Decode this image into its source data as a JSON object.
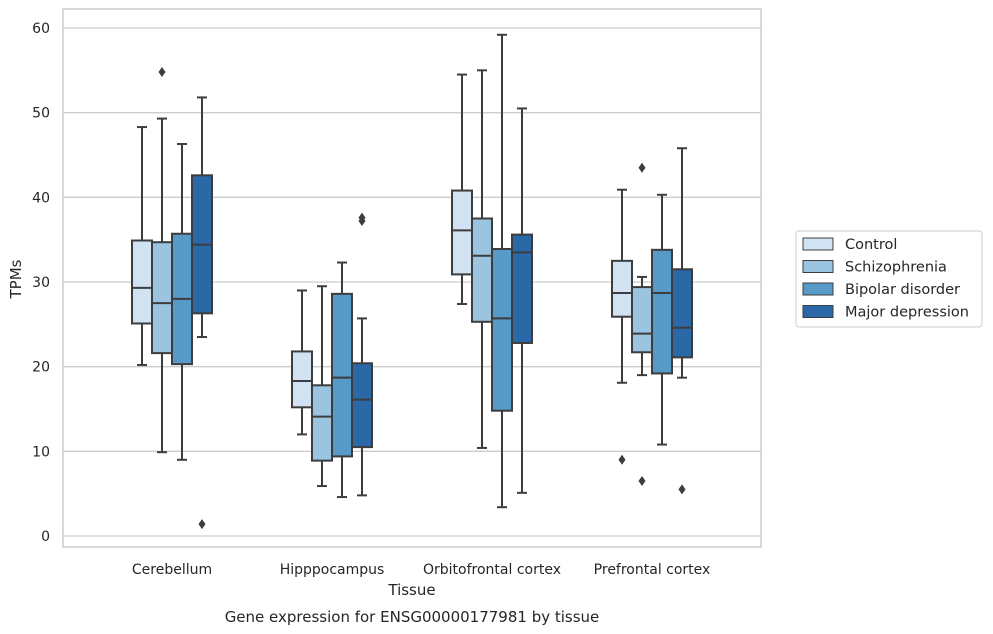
{
  "chart_data": {
    "type": "boxplot",
    "title": "",
    "caption": "Gene expression for ENSG00000177981 by tissue",
    "xlabel": "Tissue",
    "ylabel": "TPMs",
    "ylim": [
      -1.3,
      62.3
    ],
    "yticks": [
      0,
      10,
      20,
      30,
      40,
      50,
      60
    ],
    "grid": "horizontal",
    "legend_position": "right",
    "categories": [
      "Cerebellum",
      "Hipppocampus",
      "Orbitofrontal cortex",
      "Prefrontal cortex"
    ],
    "series": [
      {
        "name": "Control",
        "color": "#d1e2f2",
        "boxes": [
          {
            "whislo": 20.2,
            "q1": 25.1,
            "med": 29.3,
            "q3": 34.9,
            "whishi": 48.3,
            "fliers": []
          },
          {
            "whislo": 12.0,
            "q1": 15.2,
            "med": 18.3,
            "q3": 21.8,
            "whishi": 29.0,
            "fliers": []
          },
          {
            "whislo": 27.4,
            "q1": 30.9,
            "med": 36.1,
            "q3": 40.8,
            "whishi": 54.5,
            "fliers": []
          },
          {
            "whislo": 18.1,
            "q1": 25.9,
            "med": 28.7,
            "q3": 32.5,
            "whishi": 40.9,
            "fliers": [
              9.0
            ]
          }
        ]
      },
      {
        "name": "Schizophrenia",
        "color": "#9ac4df",
        "boxes": [
          {
            "whislo": 9.9,
            "q1": 21.6,
            "med": 27.5,
            "q3": 34.7,
            "whishi": 49.3,
            "fliers": [
              54.8
            ]
          },
          {
            "whislo": 5.9,
            "q1": 8.9,
            "med": 14.1,
            "q3": 17.8,
            "whishi": 29.5,
            "fliers": []
          },
          {
            "whislo": 10.4,
            "q1": 25.3,
            "med": 33.1,
            "q3": 37.5,
            "whishi": 55.0,
            "fliers": []
          },
          {
            "whislo": 19.0,
            "q1": 21.7,
            "med": 23.9,
            "q3": 29.4,
            "whishi": 30.6,
            "fliers": [
              43.5,
              6.5
            ]
          }
        ]
      },
      {
        "name": "Bipolar disorder",
        "color": "#5799c7",
        "boxes": [
          {
            "whislo": 9.0,
            "q1": 20.3,
            "med": 28.0,
            "q3": 35.7,
            "whishi": 46.3,
            "fliers": []
          },
          {
            "whislo": 4.6,
            "q1": 9.4,
            "med": 18.7,
            "q3": 28.6,
            "whishi": 32.3,
            "fliers": []
          },
          {
            "whislo": 3.4,
            "q1": 14.8,
            "med": 25.7,
            "q3": 33.9,
            "whishi": 59.2,
            "fliers": []
          },
          {
            "whislo": 10.8,
            "q1": 19.2,
            "med": 28.7,
            "q3": 33.8,
            "whishi": 40.3,
            "fliers": []
          }
        ]
      },
      {
        "name": "Major depression",
        "color": "#2a68a8",
        "boxes": [
          {
            "whislo": 23.5,
            "q1": 26.3,
            "med": 34.4,
            "q3": 42.6,
            "whishi": 51.8,
            "fliers": [
              1.4
            ]
          },
          {
            "whislo": 4.8,
            "q1": 10.5,
            "med": 16.1,
            "q3": 20.4,
            "whishi": 25.7,
            "fliers": [
              37.2,
              37.6
            ]
          },
          {
            "whislo": 5.1,
            "q1": 22.8,
            "med": 33.5,
            "q3": 35.6,
            "whishi": 50.5,
            "fliers": []
          },
          {
            "whislo": 18.7,
            "q1": 21.1,
            "med": 24.6,
            "q3": 31.5,
            "whishi": 45.8,
            "fliers": [
              5.5
            ]
          }
        ]
      }
    ]
  }
}
